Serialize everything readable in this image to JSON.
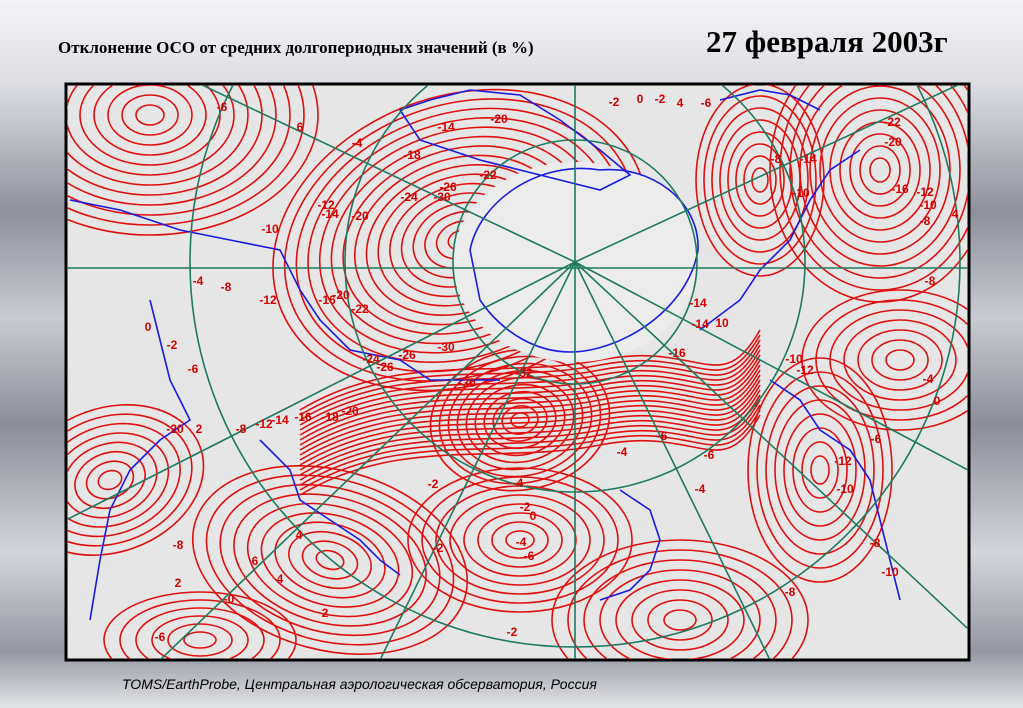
{
  "header": {
    "title": "Отклонение ОСО от средних долгопериодных значений (в %)",
    "date": "27 февраля 2003г"
  },
  "map": {
    "contour_labels": [
      "-6",
      "-2",
      "0",
      "-2",
      "4",
      "-6",
      "-22",
      "-14",
      "-20",
      "6",
      "-4",
      "-18",
      "-22",
      "-26",
      "-20",
      "-8",
      "-14",
      "-10",
      "-16",
      "-12",
      "-10",
      "4",
      "-8",
      "-24",
      "-30",
      "-12",
      "-14",
      "-20",
      "-10",
      "-4",
      "-8",
      "-12",
      "-16",
      "-20",
      "-22",
      "-8",
      "0",
      "-2",
      "-14",
      "-14",
      "10",
      "-16",
      "-10",
      "-12",
      "-24",
      "-26",
      "-30",
      "-26",
      "-6",
      "-32",
      "-30",
      "-4",
      "0",
      "-20",
      "-18",
      "-16",
      "-14",
      "-12",
      "-20",
      "2",
      "-8",
      "-6",
      "-6",
      "-4",
      "-6",
      "-12",
      "-2",
      "-4",
      "-4",
      "-10",
      "-2",
      "0",
      "4",
      "-8",
      "-2",
      "-4",
      "-6",
      "-8",
      "6",
      "-10",
      "4",
      "2",
      "-0",
      "-8",
      "2",
      "-6",
      "-2"
    ]
  },
  "footer": {
    "caption": "TOMS/EarthProbe, Центральная аэрологическая обсерватория, Россия"
  }
}
